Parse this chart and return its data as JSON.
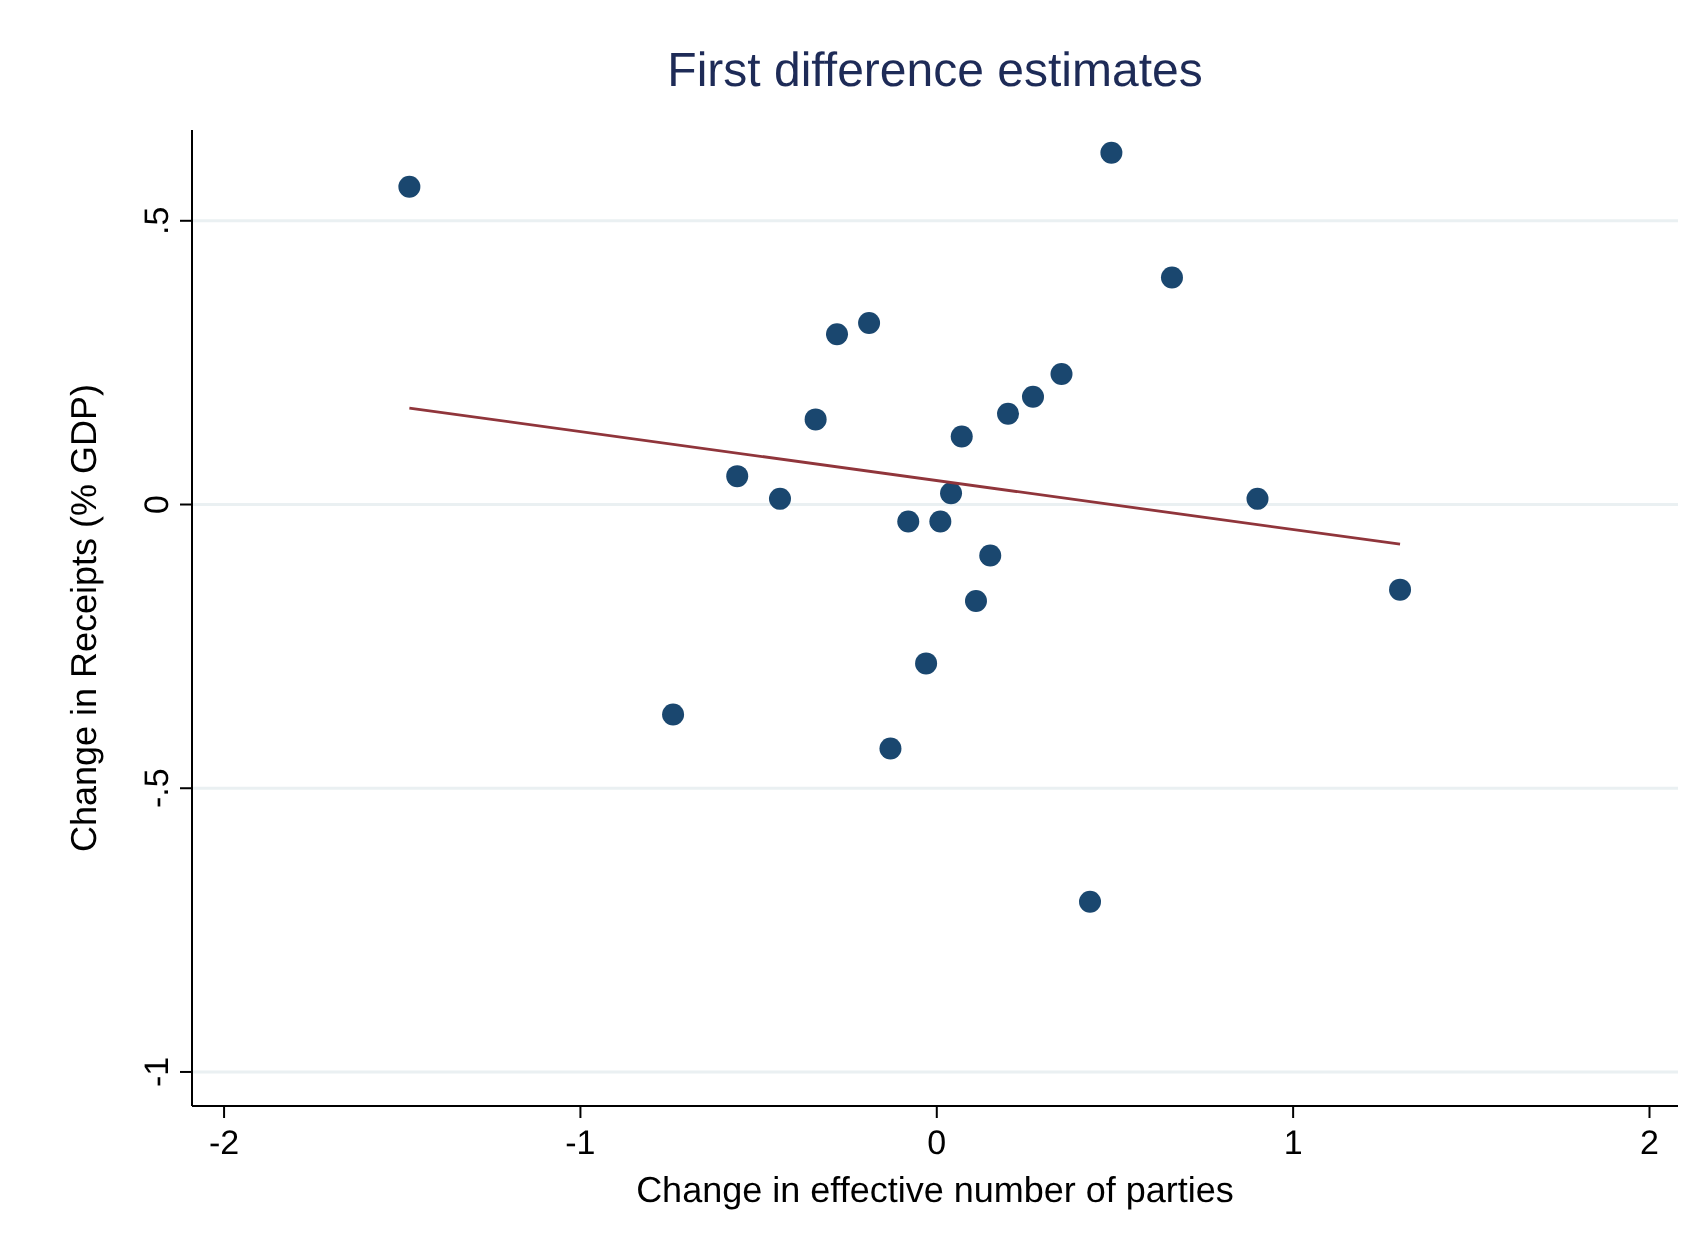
{
  "chart_data": {
    "type": "scatter",
    "title": "First difference estimates",
    "xlabel": "Change in effective number of parties",
    "ylabel": "Change in Receipts (% GDP)",
    "xlim": [
      -2.09,
      2.08
    ],
    "ylim": [
      -1.06,
      0.66
    ],
    "xticks": [
      -2,
      -1,
      0,
      1,
      2
    ],
    "yticks": [
      -1,
      {
        "value": -0.5,
        "label": "-.5"
      },
      0,
      {
        "value": 0.5,
        "label": ".5"
      }
    ],
    "grid": "y",
    "series": [
      {
        "color": "#1a476f",
        "marker": "circle",
        "x": [
          -1.48,
          0.49,
          0.66,
          -0.28,
          -0.19,
          -0.34,
          0.35,
          0.27,
          0.2,
          0.07,
          -0.56,
          -0.44,
          0.04,
          0.9,
          -0.08,
          0.01,
          0.15,
          0.11,
          1.3,
          -0.03,
          -0.74,
          -0.13,
          0.43
        ],
        "values": [
          0.56,
          0.62,
          0.4,
          0.3,
          0.32,
          0.15,
          0.23,
          0.19,
          0.16,
          0.12,
          0.05,
          0.01,
          0.02,
          0.01,
          -0.03,
          -0.03,
          -0.09,
          -0.17,
          -0.15,
          -0.28,
          -0.37,
          -0.43,
          -0.7
        ]
      },
      {
        "type": "line",
        "color": "#90353b",
        "x": [
          -1.48,
          1.3
        ],
        "values": [
          0.17,
          -0.07
        ],
        "marker": "none"
      }
    ]
  }
}
